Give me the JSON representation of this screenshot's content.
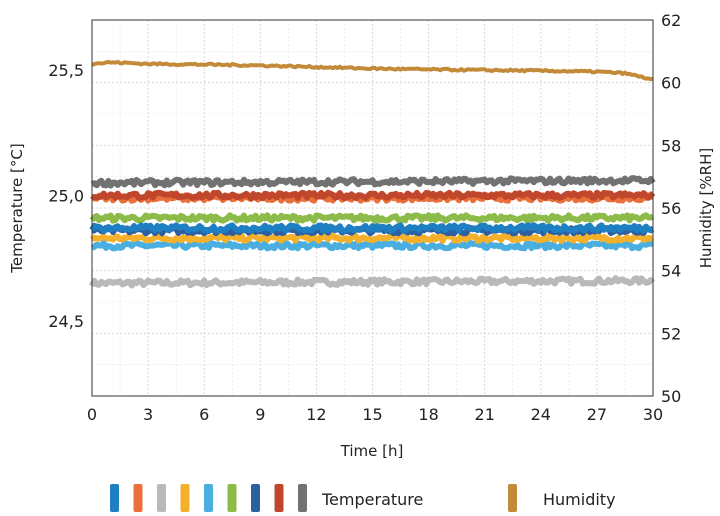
{
  "chart_data": {
    "type": "line",
    "xlabel": "Time [h]",
    "ylabel_left": "Temperature [°C]",
    "ylabel_right": "Humidity [%RH]",
    "x_ticks": [
      "0",
      "3",
      "6",
      "9",
      "12",
      "15",
      "18",
      "21",
      "24",
      "27",
      "30"
    ],
    "y_left_ticks": [
      "24,5",
      "25,0",
      "25,5"
    ],
    "y_right_ticks": [
      "50",
      "52",
      "54",
      "56",
      "58",
      "60",
      "62"
    ],
    "xlim": [
      0,
      30
    ],
    "ylim_left": [
      24.2,
      25.7
    ],
    "ylim_right": [
      50,
      62
    ],
    "grid": true,
    "legend_position": "bottom",
    "legend": {
      "temperature_label": "Temperature",
      "humidity_label": "Humidity"
    },
    "temperature_series": [
      {
        "color": "#1e7fc2",
        "values_start_end": [
          24.87,
          24.87
        ]
      },
      {
        "color": "#e8703a",
        "values_start_end": [
          24.99,
          24.99
        ]
      },
      {
        "color": "#b9b9b9",
        "values_start_end": [
          24.65,
          24.66
        ]
      },
      {
        "color": "#f5b02a",
        "values_start_end": [
          24.83,
          24.83
        ]
      },
      {
        "color": "#4aaee0",
        "values_start_end": [
          24.8,
          24.8
        ]
      },
      {
        "color": "#8dbb4a",
        "values_start_end": [
          24.91,
          24.91
        ]
      },
      {
        "color": "#2e5fa0",
        "values_start_end": [
          24.86,
          24.86
        ]
      },
      {
        "color": "#c0472c",
        "values_start_end": [
          25.0,
          25.0
        ]
      },
      {
        "color": "#727272",
        "values_start_end": [
          25.05,
          25.06
        ]
      }
    ],
    "humidity_series": {
      "color": "#c38a3a",
      "x": [
        0,
        1,
        3,
        6,
        9,
        12,
        15,
        18,
        21,
        24,
        27,
        28.5,
        30
      ],
      "values": [
        60.6,
        60.65,
        60.6,
        60.58,
        60.55,
        60.5,
        60.45,
        60.42,
        60.4,
        60.38,
        60.35,
        60.3,
        60.1
      ]
    }
  }
}
